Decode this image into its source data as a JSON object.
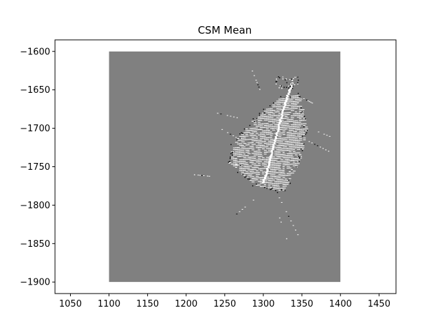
{
  "chart_data": {
    "type": "heatmap",
    "title": "CSM Mean",
    "xlabel": "",
    "ylabel": "",
    "xlim": [
      1030,
      1472
    ],
    "ylim": [
      -1915,
      -1585
    ],
    "xticks": [
      1050,
      1100,
      1150,
      1200,
      1250,
      1300,
      1350,
      1400,
      1450
    ],
    "yticks": [
      -1600,
      -1650,
      -1700,
      -1750,
      -1800,
      -1850,
      -1900
    ],
    "grid": false,
    "image_extent": {
      "x": [
        1100,
        1400
      ],
      "y": [
        -1900,
        -1600
      ]
    },
    "background_value_color": "#808080",
    "colormap": [
      "#000000",
      "#808080",
      "#ffffff"
    ],
    "features": {
      "main_ridge": {
        "x": [
          1300,
          1305,
          1310,
          1316,
          1322,
          1328,
          1334,
          1338
        ],
        "y": [
          -1770,
          -1755,
          -1735,
          -1712,
          -1690,
          -1668,
          -1650,
          -1640
        ]
      },
      "dense_region": {
        "x": [
          1255,
          1290,
          1325,
          1345,
          1355,
          1345,
          1320,
          1285,
          1260
        ],
        "y": [
          -1745,
          -1775,
          -1782,
          -1745,
          -1700,
          -1655,
          -1660,
          -1690,
          -1720
        ]
      }
    }
  }
}
